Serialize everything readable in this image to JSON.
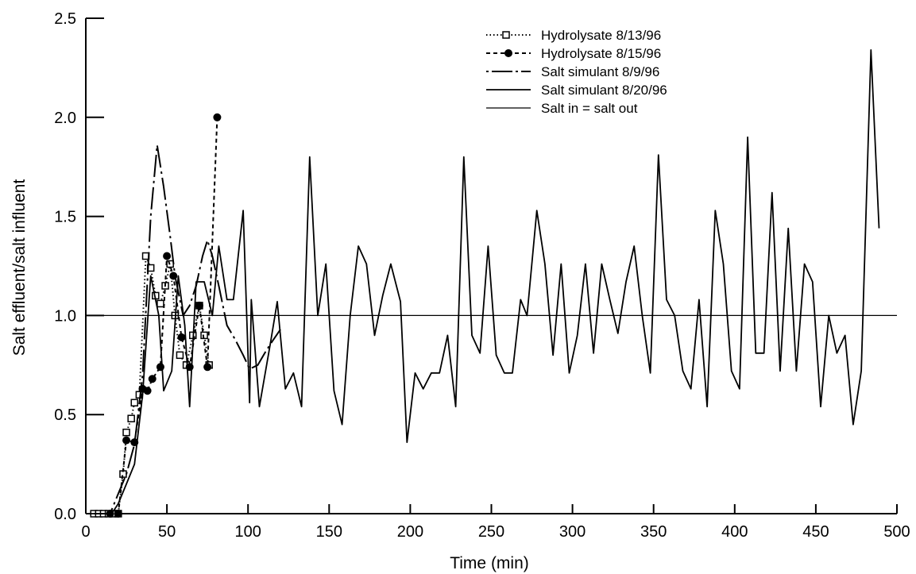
{
  "chart_data": {
    "type": "line",
    "title": "",
    "xlabel": "Time (min)",
    "ylabel": "Salt effluent/salt influent",
    "xlim": [
      0,
      500
    ],
    "ylim": [
      0,
      2.5
    ],
    "xticks": [
      0,
      50,
      100,
      150,
      200,
      250,
      300,
      350,
      400,
      450,
      500
    ],
    "yticks": [
      0.0,
      0.5,
      1.0,
      1.5,
      2.0,
      2.5
    ],
    "xtick_labels": [
      "0",
      "50",
      "100",
      "150",
      "200",
      "250",
      "300",
      "350",
      "400",
      "450",
      "500"
    ],
    "ytick_labels": [
      "0.0",
      "0.5",
      "1.0",
      "1.5",
      "2.0",
      "2.5"
    ],
    "grid": false,
    "legend_position": "top-right",
    "series": [
      {
        "name": "Hydrolysate 8/13/96",
        "style": "dotted-square",
        "points": [
          [
            5,
            0
          ],
          [
            8,
            0
          ],
          [
            11,
            0
          ],
          [
            14,
            0
          ],
          [
            17,
            0
          ],
          [
            20,
            0
          ],
          [
            23,
            0.2
          ],
          [
            25,
            0.41
          ],
          [
            28,
            0.48
          ],
          [
            30,
            0.56
          ],
          [
            33,
            0.6
          ],
          [
            37,
            1.3
          ],
          [
            40,
            1.24
          ],
          [
            43,
            1.1
          ],
          [
            46,
            1.06
          ],
          [
            49,
            1.15
          ],
          [
            52,
            1.26
          ],
          [
            55,
            1.0
          ],
          [
            58,
            0.8
          ],
          [
            62,
            0.75
          ],
          [
            66,
            0.9
          ],
          [
            70,
            1.05
          ],
          [
            73,
            0.9
          ],
          [
            76,
            0.75
          ]
        ]
      },
      {
        "name": "Hydrolysate 8/15/96",
        "style": "dashed-dot",
        "points": [
          [
            15,
            0
          ],
          [
            20,
            0
          ],
          [
            25,
            0.37
          ],
          [
            30,
            0.36
          ],
          [
            35,
            0.63
          ],
          [
            38,
            0.62
          ],
          [
            41,
            0.68
          ],
          [
            46,
            0.74
          ],
          [
            50,
            1.3
          ],
          [
            54,
            1.2
          ],
          [
            59,
            0.89
          ],
          [
            64,
            0.74
          ],
          [
            70,
            1.05
          ],
          [
            75,
            0.74
          ],
          [
            81,
            2.0
          ]
        ]
      },
      {
        "name": "Salt simulant 8/9/96",
        "style": "long-dash",
        "points": [
          [
            5,
            0
          ],
          [
            10,
            0
          ],
          [
            15,
            0
          ],
          [
            20,
            0.1
          ],
          [
            25,
            0.2
          ],
          [
            30,
            0.35
          ],
          [
            35,
            0.7
          ],
          [
            40,
            1.5
          ],
          [
            44,
            1.86
          ],
          [
            48,
            1.65
          ],
          [
            52,
            1.4
          ],
          [
            55,
            1.2
          ],
          [
            60,
            1.0
          ],
          [
            64,
            1.05
          ],
          [
            68,
            1.15
          ],
          [
            72,
            1.3
          ],
          [
            75,
            1.38
          ],
          [
            78,
            1.3
          ],
          [
            82,
            1.15
          ],
          [
            87,
            0.95
          ],
          [
            92,
            0.88
          ],
          [
            97,
            0.8
          ],
          [
            101,
            0.73
          ],
          [
            106,
            0.75
          ],
          [
            111,
            0.82
          ],
          [
            115,
            0.87
          ],
          [
            120,
            0.93
          ]
        ]
      },
      {
        "name": "Salt simulant 8/20/96",
        "style": "solid",
        "points": [
          [
            3,
            0
          ],
          [
            8,
            0
          ],
          [
            12,
            0
          ],
          [
            16,
            0
          ],
          [
            20,
            0.05
          ],
          [
            25,
            0.15
          ],
          [
            30,
            0.25
          ],
          [
            35,
            0.6
          ],
          [
            40,
            1.2
          ],
          [
            45,
            1.0
          ],
          [
            48,
            0.62
          ],
          [
            53,
            0.72
          ],
          [
            57,
            1.2
          ],
          [
            61,
            0.95
          ],
          [
            64,
            0.54
          ],
          [
            68,
            1.17
          ],
          [
            73,
            1.17
          ],
          [
            78,
            1.0
          ],
          [
            82,
            1.35
          ],
          [
            87,
            1.08
          ],
          [
            91,
            1.08
          ],
          [
            97,
            1.53
          ],
          [
            101,
            0.56
          ],
          [
            102,
            1.08
          ],
          [
            107,
            0.54
          ],
          [
            114,
            0.87
          ],
          [
            118,
            1.07
          ],
          [
            123,
            0.63
          ],
          [
            128,
            0.71
          ],
          [
            133,
            0.54
          ],
          [
            138,
            1.8
          ],
          [
            143,
            1.0
          ],
          [
            148,
            1.26
          ],
          [
            153,
            0.62
          ],
          [
            158,
            0.45
          ],
          [
            163,
            1.0
          ],
          [
            168,
            1.35
          ],
          [
            173,
            1.26
          ],
          [
            178,
            0.9
          ],
          [
            183,
            1.1
          ],
          [
            188,
            1.26
          ],
          [
            194,
            1.07
          ],
          [
            198,
            0.36
          ],
          [
            203,
            0.71
          ],
          [
            208,
            0.63
          ],
          [
            213,
            0.71
          ],
          [
            218,
            0.71
          ],
          [
            223,
            0.9
          ],
          [
            228,
            0.54
          ],
          [
            233,
            1.8
          ],
          [
            238,
            0.9
          ],
          [
            243,
            0.81
          ],
          [
            248,
            1.35
          ],
          [
            253,
            0.8
          ],
          [
            258,
            0.71
          ],
          [
            263,
            0.71
          ],
          [
            268,
            1.08
          ],
          [
            272,
            1.0
          ],
          [
            278,
            1.53
          ],
          [
            283,
            1.26
          ],
          [
            288,
            0.8
          ],
          [
            293,
            1.26
          ],
          [
            298,
            0.71
          ],
          [
            303,
            0.9
          ],
          [
            308,
            1.26
          ],
          [
            313,
            0.81
          ],
          [
            318,
            1.26
          ],
          [
            323,
            1.08
          ],
          [
            328,
            0.91
          ],
          [
            333,
            1.17
          ],
          [
            338,
            1.35
          ],
          [
            343,
            1.0
          ],
          [
            348,
            0.71
          ],
          [
            353,
            1.81
          ],
          [
            358,
            1.08
          ],
          [
            363,
            1.0
          ],
          [
            368,
            0.72
          ],
          [
            373,
            0.63
          ],
          [
            378,
            1.08
          ],
          [
            383,
            0.54
          ],
          [
            388,
            1.53
          ],
          [
            393,
            1.26
          ],
          [
            398,
            0.72
          ],
          [
            403,
            0.63
          ],
          [
            408,
            1.9
          ],
          [
            413,
            0.81
          ],
          [
            418,
            0.81
          ],
          [
            423,
            1.62
          ],
          [
            428,
            0.72
          ],
          [
            433,
            1.44
          ],
          [
            438,
            0.72
          ],
          [
            443,
            1.26
          ],
          [
            448,
            1.17
          ],
          [
            453,
            0.54
          ],
          [
            458,
            1.0
          ],
          [
            463,
            0.81
          ],
          [
            468,
            0.9
          ],
          [
            473,
            0.45
          ],
          [
            478,
            0.72
          ],
          [
            484,
            2.34
          ],
          [
            489,
            1.44
          ]
        ]
      },
      {
        "name": "Salt in = salt out",
        "style": "solid-thin",
        "points": [
          [
            0,
            1.0
          ],
          [
            500,
            1.0
          ]
        ]
      }
    ]
  }
}
